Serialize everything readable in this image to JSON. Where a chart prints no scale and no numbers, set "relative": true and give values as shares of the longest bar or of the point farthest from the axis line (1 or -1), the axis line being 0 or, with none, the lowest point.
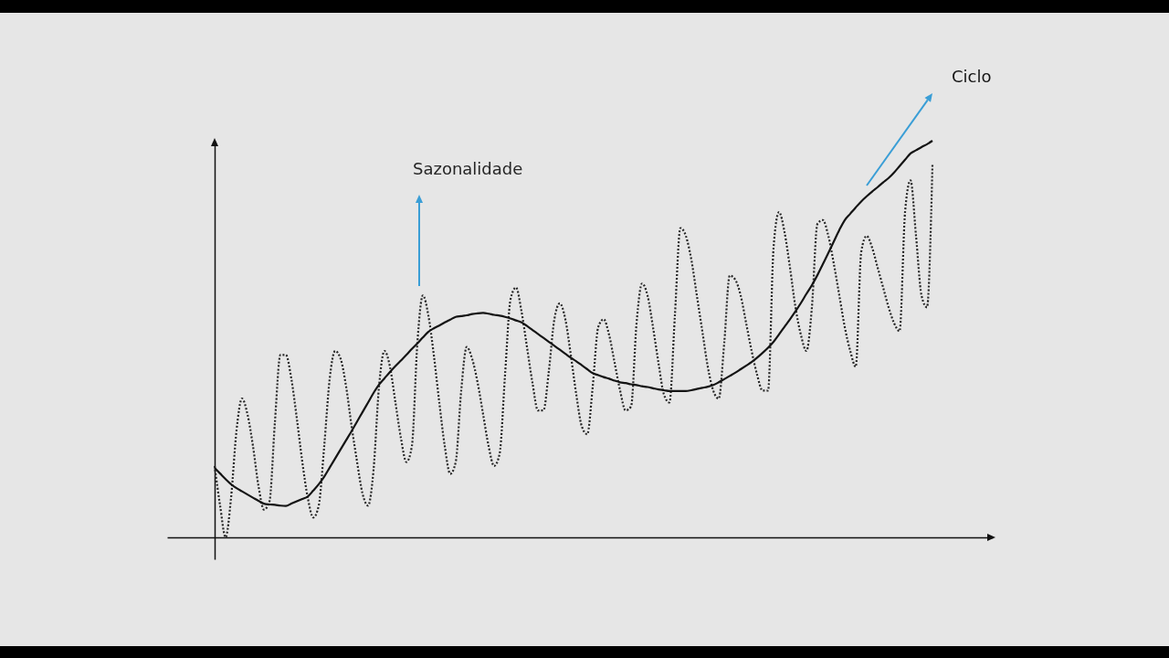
{
  "chart_data": {
    "type": "line",
    "relative": true,
    "categories": [
      null,
      null,
      null,
      null,
      null,
      null,
      null,
      null,
      null,
      null,
      null,
      null,
      null,
      null,
      null,
      null,
      null,
      null,
      null,
      null,
      null,
      null,
      null,
      null,
      null,
      null,
      null,
      null,
      null,
      null,
      null,
      null,
      null,
      null,
      null,
      null,
      null,
      null,
      null,
      null,
      null,
      null,
      null,
      null,
      null,
      null,
      null,
      null,
      null,
      null,
      null,
      null,
      null,
      null,
      null,
      null,
      null,
      null,
      null,
      null,
      null,
      null,
      null,
      null,
      null,
      null,
      null,
      null,
      null,
      null,
      null,
      null,
      null,
      null,
      null,
      null,
      null,
      null,
      null,
      null,
      null,
      null,
      null,
      null,
      null,
      null,
      null,
      null,
      null,
      null,
      null,
      null,
      null,
      null,
      null,
      null,
      null,
      null,
      null,
      null,
      null,
      null,
      null,
      null,
      null,
      null,
      null,
      null,
      null,
      null,
      null,
      null,
      null,
      null,
      null,
      null,
      null,
      null,
      null,
      null,
      null,
      null,
      null,
      null,
      null,
      null,
      null,
      null,
      null,
      null,
      null,
      null
    ],
    "series": [
      {
        "name": "Sazonalidade",
        "color": "#262626",
        "line_style": "dotted",
        "values": [
          0.18,
          0.08,
          0.0,
          0.1,
          0.27,
          0.35,
          0.31,
          0.23,
          0.13,
          0.07,
          0.09,
          0.29,
          0.46,
          0.46,
          0.4,
          0.3,
          0.19,
          0.1,
          0.05,
          0.08,
          0.23,
          0.4,
          0.47,
          0.45,
          0.38,
          0.28,
          0.19,
          0.11,
          0.08,
          0.17,
          0.38,
          0.47,
          0.43,
          0.34,
          0.25,
          0.19,
          0.23,
          0.49,
          0.61,
          0.56,
          0.46,
          0.34,
          0.23,
          0.16,
          0.19,
          0.37,
          0.48,
          0.45,
          0.39,
          0.31,
          0.23,
          0.18,
          0.21,
          0.41,
          0.6,
          0.63,
          0.57,
          0.48,
          0.39,
          0.32,
          0.32,
          0.42,
          0.55,
          0.59,
          0.55,
          0.46,
          0.36,
          0.28,
          0.26,
          0.38,
          0.53,
          0.55,
          0.51,
          0.44,
          0.37,
          0.32,
          0.33,
          0.54,
          0.64,
          0.61,
          0.53,
          0.44,
          0.36,
          0.34,
          0.56,
          0.78,
          0.76,
          0.7,
          0.61,
          0.52,
          0.43,
          0.37,
          0.35,
          0.49,
          0.66,
          0.65,
          0.61,
          0.54,
          0.47,
          0.41,
          0.37,
          0.37,
          0.73,
          0.82,
          0.77,
          0.68,
          0.58,
          0.51,
          0.47,
          0.58,
          0.79,
          0.8,
          0.76,
          0.69,
          0.61,
          0.53,
          0.47,
          0.43,
          0.72,
          0.76,
          0.73,
          0.68,
          0.63,
          0.58,
          0.54,
          0.52,
          0.82,
          0.9,
          0.76,
          0.61,
          0.58,
          0.94
        ]
      },
      {
        "name": "Ciclo",
        "color": "#141414",
        "line_style": "solid",
        "values": [
          0.175,
          0.161,
          0.147,
          0.134,
          0.124,
          0.116,
          0.108,
          0.1,
          0.092,
          0.085,
          0.083,
          0.082,
          0.08,
          0.079,
          0.085,
          0.091,
          0.097,
          0.103,
          0.118,
          0.134,
          0.153,
          0.176,
          0.199,
          0.222,
          0.245,
          0.268,
          0.292,
          0.316,
          0.34,
          0.364,
          0.385,
          0.401,
          0.417,
          0.432,
          0.446,
          0.46,
          0.475,
          0.489,
          0.504,
          0.518,
          0.527,
          0.534,
          0.542,
          0.549,
          0.556,
          0.558,
          0.56,
          0.563,
          0.565,
          0.566,
          0.564,
          0.561,
          0.559,
          0.556,
          0.552,
          0.547,
          0.542,
          0.533,
          0.523,
          0.513,
          0.503,
          0.493,
          0.483,
          0.473,
          0.463,
          0.453,
          0.444,
          0.434,
          0.424,
          0.414,
          0.409,
          0.404,
          0.4,
          0.395,
          0.391,
          0.389,
          0.386,
          0.384,
          0.381,
          0.379,
          0.376,
          0.373,
          0.371,
          0.369,
          0.369,
          0.369,
          0.369,
          0.371,
          0.374,
          0.377,
          0.38,
          0.384,
          0.391,
          0.399,
          0.407,
          0.415,
          0.424,
          0.433,
          0.442,
          0.453,
          0.465,
          0.478,
          0.493,
          0.512,
          0.531,
          0.55,
          0.57,
          0.591,
          0.614,
          0.636,
          0.661,
          0.689,
          0.717,
          0.746,
          0.775,
          0.8,
          0.816,
          0.832,
          0.847,
          0.86,
          0.872,
          0.883,
          0.895,
          0.906,
          0.92,
          0.936,
          0.952,
          0.968,
          0.976,
          0.984,
          0.991,
          1
        ]
      }
    ]
  }
}
